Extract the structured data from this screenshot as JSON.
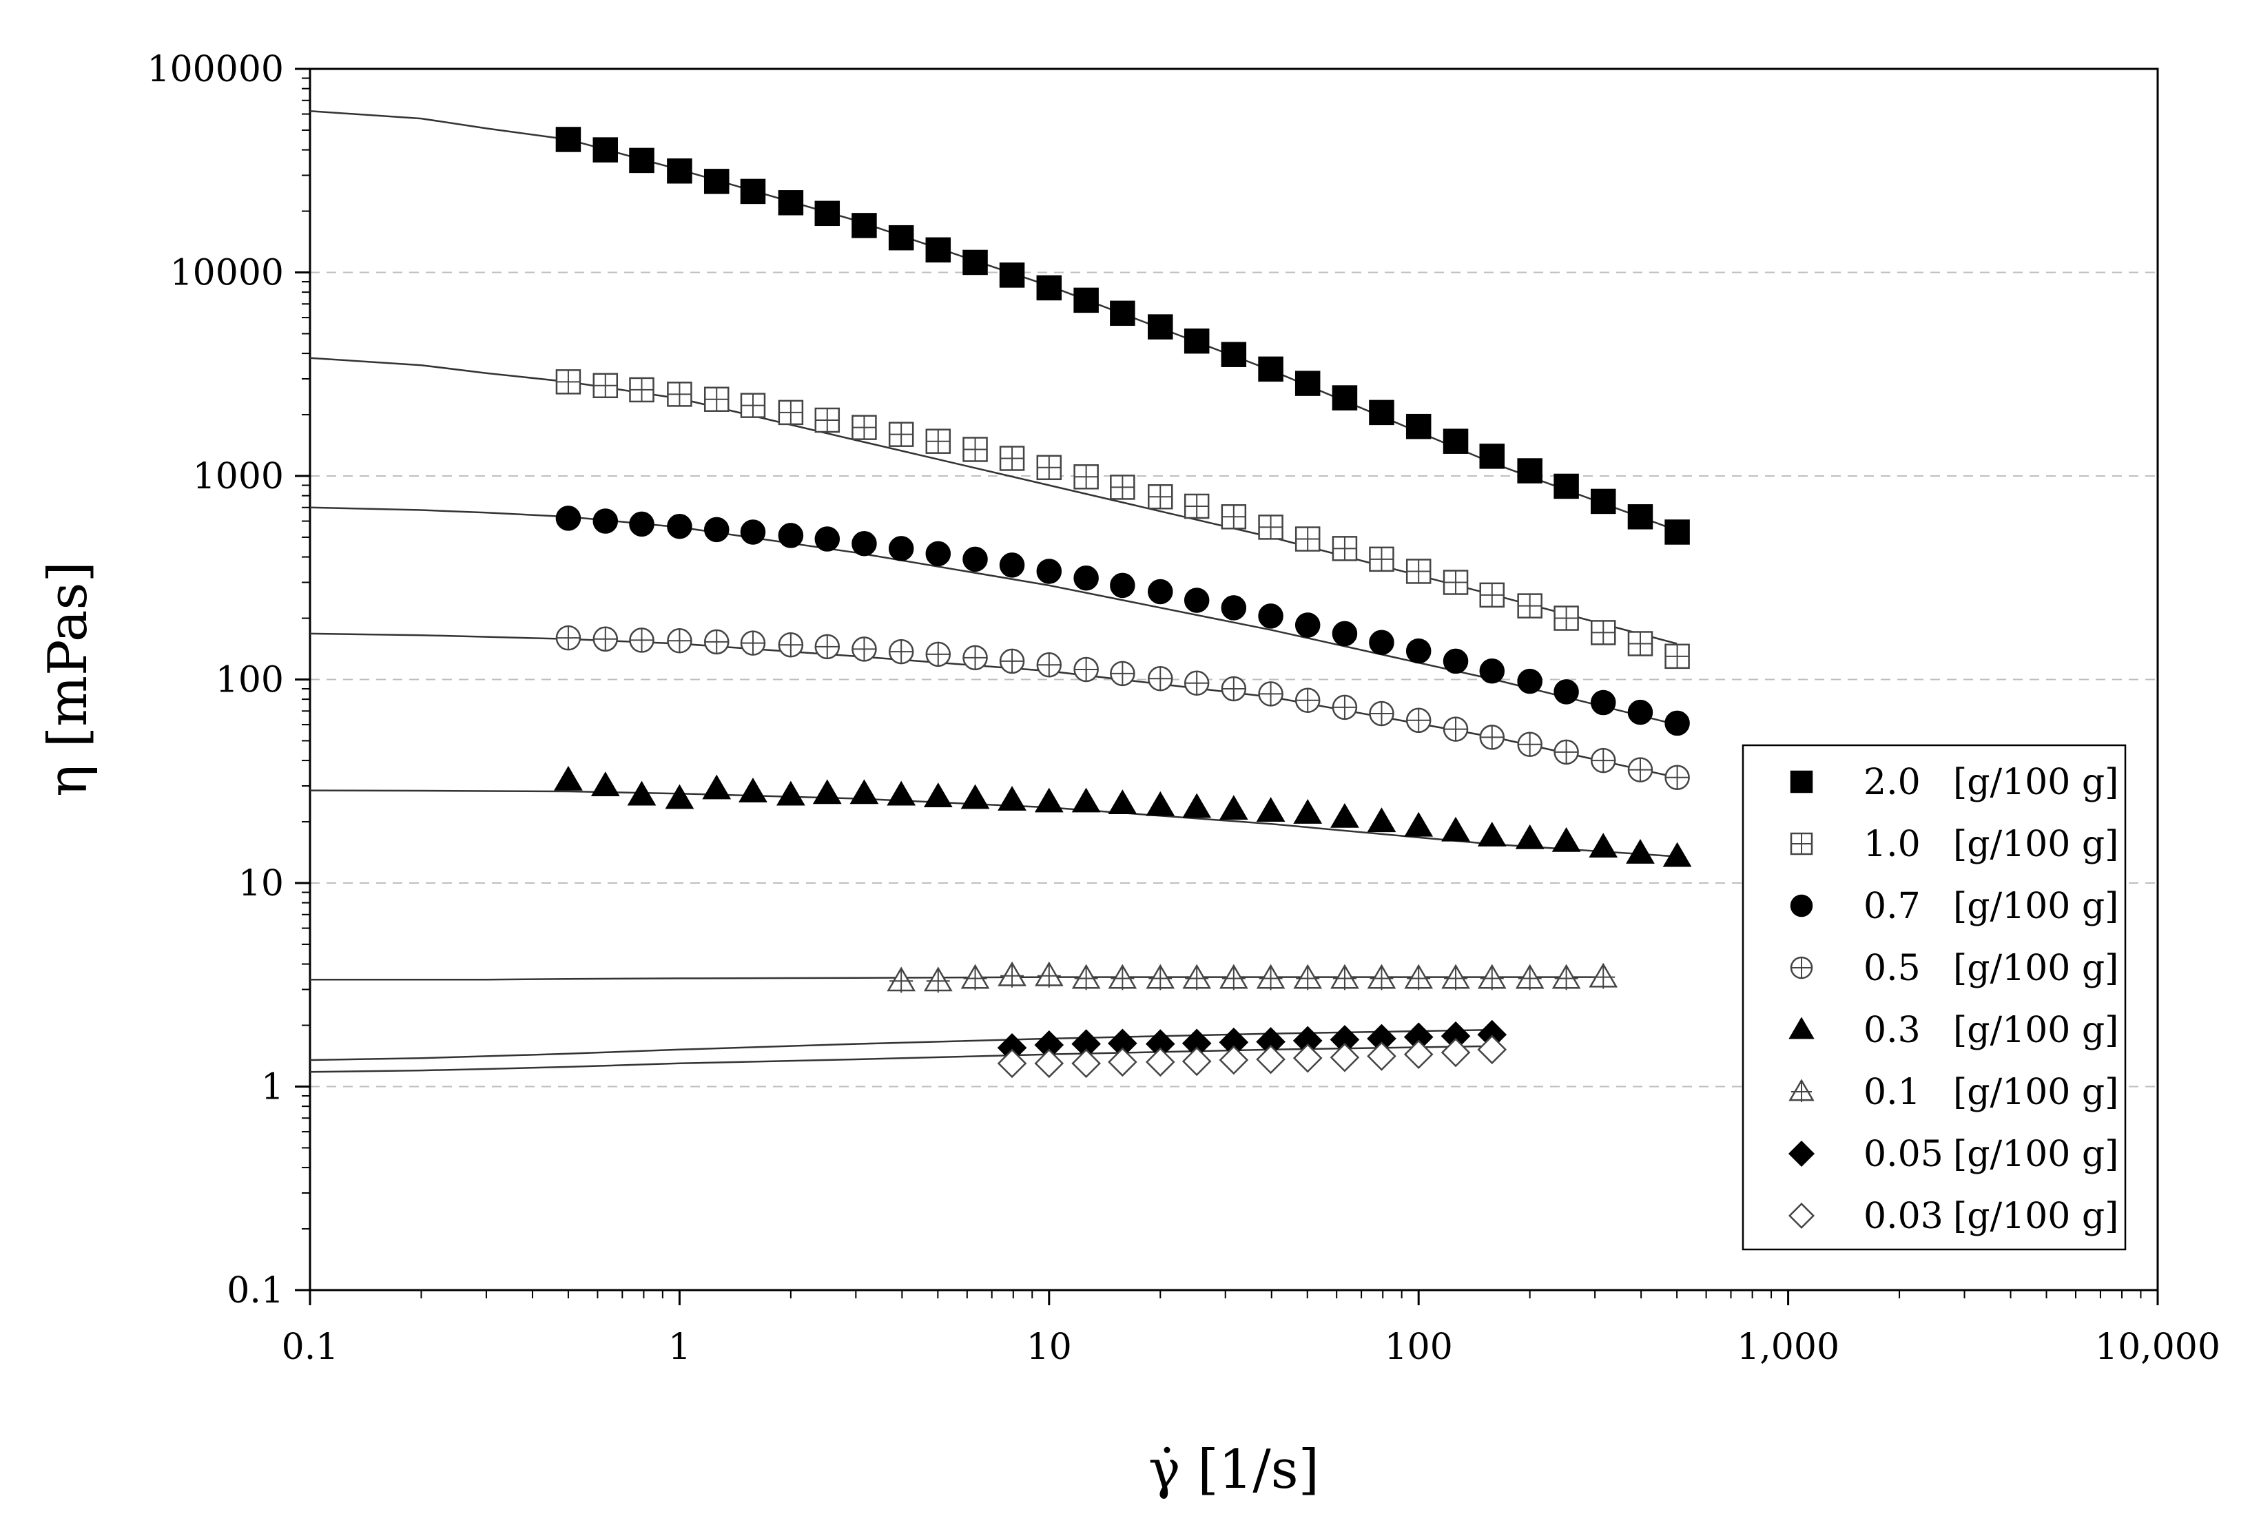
{
  "chart_data": {
    "type": "scatter",
    "title": "",
    "xlabel": "γ̇ [1/s]",
    "ylabel": "η [mPas]",
    "x_scale": "log",
    "y_scale": "log",
    "xlim": [
      0.1,
      10000
    ],
    "ylim": [
      0.1,
      100000
    ],
    "grid": "horizontal dashed at y decades",
    "legend_position": "bottom-right",
    "x_tick_labels": [
      "0.1",
      "1",
      "10",
      "100",
      "1,000",
      "10,000"
    ],
    "y_tick_labels": [
      "0.1",
      "1",
      "10",
      "100",
      "1000",
      "10000",
      "100000"
    ],
    "series": [
      {
        "name": "2.0",
        "unit": "[g/100 g]",
        "marker": "square-filled",
        "x": [
          0.5,
          0.63,
          0.79,
          1.0,
          1.26,
          1.58,
          2.0,
          2.51,
          3.16,
          3.98,
          5.01,
          6.31,
          7.94,
          10.0,
          12.6,
          15.8,
          20.0,
          25.1,
          31.6,
          39.8,
          50.1,
          63.1,
          79.4,
          100,
          126,
          158,
          200,
          251,
          316,
          398,
          501
        ],
        "y": [
          45000,
          40000,
          35500,
          31500,
          28000,
          25000,
          22000,
          19500,
          17000,
          14800,
          12900,
          11200,
          9700,
          8400,
          7300,
          6300,
          5400,
          4600,
          3950,
          3350,
          2850,
          2420,
          2050,
          1750,
          1480,
          1250,
          1060,
          890,
          750,
          630,
          530
        ],
        "fit_y": [
          62000,
          57000,
          51000,
          45000,
          32000,
          18000,
          8600,
          3300,
          1150,
          540
        ]
      },
      {
        "name": "1.0",
        "unit": "[g/100 g]",
        "marker": "square-crossed",
        "x": [
          0.5,
          0.63,
          0.79,
          1.0,
          1.26,
          1.58,
          2.0,
          2.51,
          3.16,
          3.98,
          5.01,
          6.31,
          7.94,
          10.0,
          12.6,
          15.8,
          20.0,
          25.1,
          31.6,
          39.8,
          50.1,
          63.1,
          79.4,
          100,
          126,
          158,
          200,
          251,
          316,
          398,
          501
        ],
        "y": [
          2900,
          2780,
          2650,
          2520,
          2380,
          2220,
          2050,
          1880,
          1730,
          1600,
          1480,
          1350,
          1220,
          1100,
          990,
          880,
          790,
          710,
          630,
          560,
          490,
          440,
          390,
          340,
          300,
          260,
          230,
          200,
          170,
          150,
          130
        ],
        "fit_y": [
          3800,
          3500,
          3200,
          2900,
          2400,
          1500,
          900,
          500,
          260,
          150
        ]
      },
      {
        "name": "0.7",
        "unit": "[g/100 g]",
        "marker": "circle-filled",
        "x": [
          0.5,
          0.63,
          0.79,
          1.0,
          1.26,
          1.58,
          2.0,
          2.51,
          3.16,
          3.98,
          5.01,
          6.31,
          7.94,
          10.0,
          12.6,
          15.8,
          20.0,
          25.1,
          31.6,
          39.8,
          50.1,
          63.1,
          79.4,
          100,
          126,
          158,
          200,
          251,
          316,
          398,
          501
        ],
        "y": [
          620,
          600,
          580,
          565,
          545,
          530,
          510,
          490,
          465,
          440,
          415,
          390,
          365,
          340,
          315,
          290,
          270,
          245,
          225,
          205,
          185,
          168,
          152,
          138,
          123,
          110,
          98,
          87,
          77,
          69,
          61
        ],
        "fit_y": [
          700,
          680,
          660,
          630,
          560,
          420,
          290,
          175,
          100,
          60
        ]
      },
      {
        "name": "0.5",
        "unit": "[g/100 g]",
        "marker": "circle-crossed",
        "x": [
          0.5,
          0.63,
          0.79,
          1.0,
          1.26,
          1.58,
          2.0,
          2.51,
          3.16,
          3.98,
          5.01,
          6.31,
          7.94,
          10.0,
          12.6,
          15.8,
          20.0,
          25.1,
          31.6,
          39.8,
          50.1,
          63.1,
          79.4,
          100,
          126,
          158,
          200,
          251,
          316,
          398,
          501
        ],
        "y": [
          160,
          158,
          156,
          155,
          153,
          151,
          148,
          145,
          141,
          137,
          133,
          128,
          123,
          118,
          112,
          107,
          101,
          96,
          90,
          85,
          79,
          73,
          68,
          63,
          57,
          52,
          48,
          44,
          40,
          36,
          33
        ],
        "fit_y": [
          168,
          165,
          162,
          158,
          150,
          130,
          110,
          82,
          52,
          33
        ]
      },
      {
        "name": "0.3",
        "unit": "[g/100 g]",
        "marker": "triangle-filled",
        "x": [
          0.5,
          0.63,
          0.79,
          1.0,
          1.26,
          1.58,
          2.0,
          2.51,
          3.16,
          3.98,
          5.01,
          6.31,
          7.94,
          10.0,
          12.6,
          15.8,
          20.0,
          25.1,
          31.6,
          39.8,
          50.1,
          63.1,
          79.4,
          100,
          126,
          158,
          200,
          251,
          316,
          398,
          501
        ],
        "y": [
          32,
          30,
          27,
          26,
          29,
          28,
          27,
          27.5,
          27.5,
          27,
          26.5,
          26,
          25.5,
          25,
          25,
          24.5,
          24,
          23.5,
          23,
          22.5,
          22,
          21,
          20,
          19,
          18,
          17,
          16.5,
          16,
          15,
          14,
          13.5
        ],
        "fit_y": [
          28.5,
          28.4,
          28.3,
          28.2,
          27.5,
          26,
          23.5,
          19.5,
          15.5,
          13.5
        ]
      },
      {
        "name": "0.1",
        "unit": "[g/100 g]",
        "marker": "triangle-crossed",
        "x": [
          3.98,
          5.01,
          6.31,
          7.94,
          10.0,
          12.6,
          15.8,
          20.0,
          25.1,
          31.6,
          39.8,
          50.1,
          63.1,
          79.4,
          100,
          126,
          158,
          200,
          251,
          316
        ],
        "y": [
          3.3,
          3.3,
          3.4,
          3.5,
          3.5,
          3.4,
          3.4,
          3.4,
          3.4,
          3.4,
          3.4,
          3.4,
          3.4,
          3.4,
          3.4,
          3.4,
          3.4,
          3.4,
          3.4,
          3.45
        ],
        "fit_y": [
          3.35,
          3.35,
          3.35,
          3.38,
          3.4,
          3.42,
          3.45,
          3.45,
          3.45,
          3.45
        ]
      },
      {
        "name": "0.05",
        "unit": "[g/100 g]",
        "marker": "diamond-filled",
        "x": [
          7.94,
          10.0,
          12.6,
          15.8,
          20.0,
          25.1,
          31.6,
          39.8,
          50.1,
          63.1,
          79.4,
          100,
          126,
          158
        ],
        "y": [
          1.55,
          1.6,
          1.62,
          1.63,
          1.62,
          1.63,
          1.65,
          1.66,
          1.68,
          1.7,
          1.72,
          1.75,
          1.77,
          1.8
        ],
        "fit_y": [
          1.35,
          1.38,
          1.41,
          1.45,
          1.52,
          1.62,
          1.72,
          1.82,
          1.9,
          1.95
        ]
      },
      {
        "name": "0.03",
        "unit": "[g/100 g]",
        "marker": "diamond-open",
        "x": [
          7.94,
          10.0,
          12.6,
          15.8,
          20.0,
          25.1,
          31.6,
          39.8,
          50.1,
          63.1,
          79.4,
          100,
          126,
          158
        ],
        "y": [
          1.3,
          1.3,
          1.3,
          1.32,
          1.32,
          1.33,
          1.35,
          1.36,
          1.38,
          1.39,
          1.41,
          1.44,
          1.47,
          1.52
        ],
        "fit_y": [
          1.18,
          1.2,
          1.22,
          1.25,
          1.3,
          1.36,
          1.44,
          1.52,
          1.58,
          1.62
        ]
      }
    ],
    "fit_x": [
      0.1,
      0.2,
      0.3,
      0.5,
      1.0,
      3.0,
      10,
      40,
      160,
      500
    ],
    "fit_x_end": [
      500,
      500,
      500,
      500,
      500,
      316,
      158,
      158
    ]
  }
}
